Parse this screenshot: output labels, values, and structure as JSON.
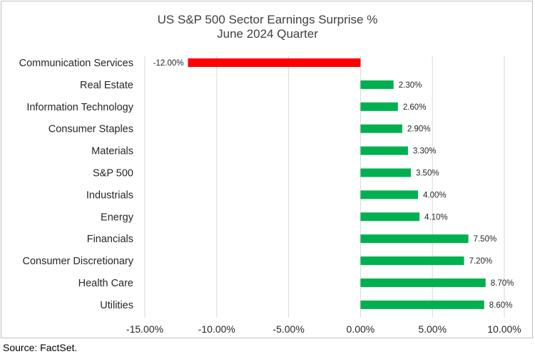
{
  "chart_data": {
    "type": "bar",
    "orientation": "horizontal",
    "title": "US S&P 500 Sector Earnings Surprise %",
    "subtitle": "June 2024 Quarter",
    "categories": [
      "Communication Services",
      "Real Estate",
      "Information Technology",
      "Consumer Staples",
      "Materials",
      "S&P 500",
      "Industrials",
      "Energy",
      "Financials",
      "Consumer Discretionary",
      "Health Care",
      "Utilities"
    ],
    "values": [
      -12.0,
      2.3,
      2.6,
      2.9,
      3.3,
      3.5,
      4.0,
      4.1,
      7.5,
      7.2,
      8.7,
      8.6
    ],
    "data_labels": [
      "-12.00%",
      "2.30%",
      "2.60%",
      "2.90%",
      "3.30%",
      "3.50%",
      "4.00%",
      "4.10%",
      "7.50%",
      "7.20%",
      "8.70%",
      "8.60%"
    ],
    "xlim": [
      -15,
      10
    ],
    "x_ticks": [
      -15,
      -10,
      -5,
      0,
      5,
      10
    ],
    "x_tick_labels": [
      "-15.00%",
      "-10.00%",
      "-5.00%",
      "0.00%",
      "5.00%",
      "10.00%"
    ],
    "grid": "vertical",
    "colors": {
      "positive": "#00b050",
      "negative": "#ff0000",
      "grid": "#d9d9d9"
    },
    "source": "Source: FactSet."
  }
}
